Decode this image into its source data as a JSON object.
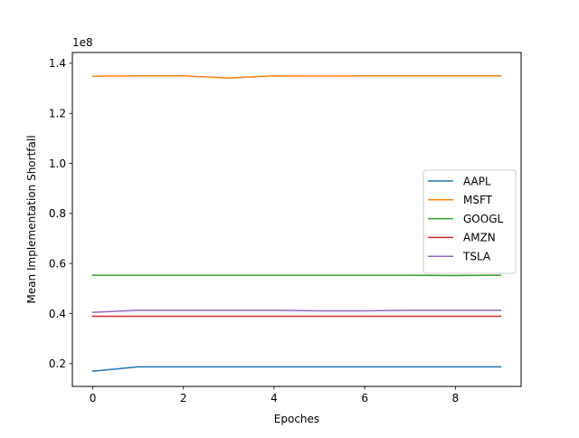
{
  "chart_data": {
    "type": "line",
    "title": "",
    "xlabel": "Epoches",
    "ylabel": "Mean Implementation Shortfall",
    "y_scale_label": "1e8",
    "xlim": [
      -0.45,
      9.45
    ],
    "ylim": [
      10900000,
      144300000
    ],
    "x_ticks": [
      {
        "value": 0,
        "label": "0"
      },
      {
        "value": 2,
        "label": "2"
      },
      {
        "value": 4,
        "label": "4"
      },
      {
        "value": 6,
        "label": "6"
      },
      {
        "value": 8,
        "label": "8"
      }
    ],
    "y_ticks": [
      {
        "value": 20000000,
        "label": "0.2"
      },
      {
        "value": 40000000,
        "label": "0.4"
      },
      {
        "value": 60000000,
        "label": "0.6"
      },
      {
        "value": 80000000,
        "label": "0.8"
      },
      {
        "value": 100000000,
        "label": "1.0"
      },
      {
        "value": 120000000,
        "label": "1.2"
      },
      {
        "value": 140000000,
        "label": "1.4"
      }
    ],
    "x": [
      0,
      1,
      2,
      3,
      4,
      5,
      6,
      7,
      8,
      9
    ],
    "series": [
      {
        "name": "AAPL",
        "color": "#1f77b4",
        "values": [
          17000000,
          18700000,
          18700000,
          18700000,
          18700000,
          18700000,
          18700000,
          18700000,
          18700000,
          18700000
        ]
      },
      {
        "name": "MSFT",
        "color": "#ff7f0e",
        "values": [
          134800000,
          135000000,
          135000000,
          134100000,
          135000000,
          134900000,
          135000000,
          135000000,
          135000000,
          135000000
        ]
      },
      {
        "name": "GOOGL",
        "color": "#2ca02c",
        "values": [
          55300000,
          55300000,
          55300000,
          55300000,
          55300000,
          55300000,
          55300000,
          55300000,
          55200000,
          55300000
        ]
      },
      {
        "name": "AMZN",
        "color": "#d62728",
        "values": [
          38900000,
          38900000,
          38900000,
          38900000,
          38900000,
          38900000,
          38900000,
          38900000,
          38900000,
          38900000
        ]
      },
      {
        "name": "TSLA",
        "color": "#9467bd",
        "values": [
          40500000,
          41300000,
          41300000,
          41300000,
          41300000,
          41100000,
          41100000,
          41300000,
          41300000,
          41300000
        ]
      }
    ],
    "grid": false,
    "legend_position": "center-right"
  }
}
